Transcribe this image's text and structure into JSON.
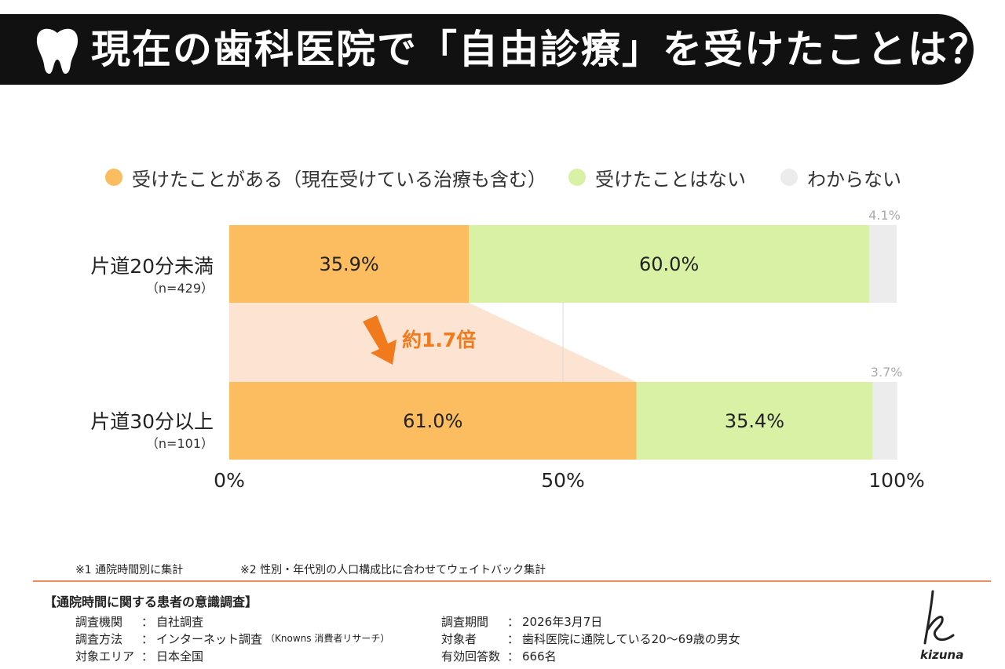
{
  "title": "現在の歯科医院で「自由診療」を受けたことは？",
  "legend": [
    {
      "label": "受けたことがある（現在受けている治療も含む）",
      "color": "#fbbd5f"
    },
    {
      "label": "受けたことはない",
      "color": "#d8f1a5"
    },
    {
      "label": "わからない",
      "color": "#ececec"
    }
  ],
  "chart_data": {
    "type": "bar",
    "orientation": "horizontal",
    "stacked": true,
    "categories": [
      "片道20分未満",
      "片道30分以上"
    ],
    "sample_sizes": [
      "（n=429）",
      "（n=101）"
    ],
    "series": [
      {
        "name": "受けたことがある（現在受けている治療も含む）",
        "color": "#fbbd5f",
        "values": [
          35.9,
          61.0
        ],
        "labels": [
          "35.9%",
          "61.0%"
        ]
      },
      {
        "name": "受けたことはない",
        "color": "#d8f1a5",
        "values": [
          60.0,
          35.4
        ],
        "labels": [
          "60.0%",
          "35.4%"
        ]
      },
      {
        "name": "わからない",
        "color": "#ececec",
        "values": [
          4.1,
          3.7
        ],
        "labels": [
          "4.1%",
          "3.7%"
        ]
      }
    ],
    "x_ticks": [
      "0%",
      "50%",
      "100%"
    ],
    "xlim": [
      0,
      100
    ],
    "annotation": "約1.7倍"
  },
  "notes": [
    "※1 通院時間別に集計",
    "※2 性別・年代別の人口構成比に合わせてウェイトバック集計"
  ],
  "survey": {
    "title": "【通院時間に関する患者の意識調査】",
    "left": [
      {
        "key": "調査機関",
        "value": "自社調査"
      },
      {
        "key": "調査方法",
        "value": "インターネット調査",
        "note": "（Knowns 消費者リサーチ）"
      },
      {
        "key": "対象エリア",
        "value": "日本全国"
      }
    ],
    "right": [
      {
        "key": "調査期間",
        "value": "2026年3月7日"
      },
      {
        "key": "対象者",
        "value": "歯科医院に通院している20〜69歳の男女"
      },
      {
        "key": "有効回答数",
        "value": "666名"
      }
    ]
  },
  "brand": {
    "name": "kizuna"
  }
}
